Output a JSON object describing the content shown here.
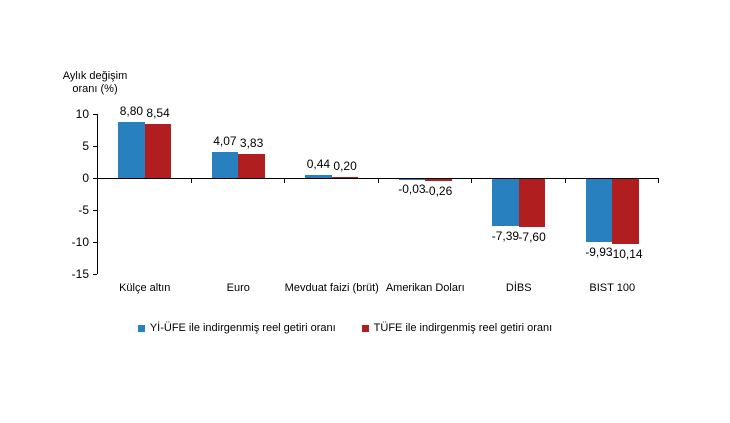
{
  "chart_data": {
    "type": "bar",
    "title": "",
    "ylabel": "Aylık değişim\noranı (%)",
    "xlabel": "",
    "categories": [
      "Külçe altın",
      "Euro",
      "Mevduat faizi (brüt)",
      "Amerikan Doları",
      "DİBS",
      "BIST 100"
    ],
    "series": [
      {
        "name": "Yİ-ÜFE ile indirgenmiş reel getiri oranı",
        "color": "#2980BE",
        "values": [
          8.8,
          4.07,
          0.44,
          -0.03,
          -7.39,
          -9.93
        ],
        "value_labels": [
          "8,80",
          "4,07",
          "0,44",
          "-0,03",
          "-7,39",
          "-9,93"
        ]
      },
      {
        "name": "TÜFE ile indirgenmiş reel getiri oranı",
        "color": "#B01E20",
        "values": [
          8.54,
          3.83,
          0.2,
          -0.26,
          -7.6,
          -10.14
        ],
        "value_labels": [
          "8,54",
          "3,83",
          "0,20",
          "-0,26",
          "-7,60",
          "-10,14"
        ]
      }
    ],
    "y_ticks": [
      10,
      5,
      0,
      -5,
      -10,
      -15
    ],
    "ylim": [
      -15,
      10
    ],
    "grid": false,
    "legend_position": "bottom",
    "decimal_separator": ","
  }
}
